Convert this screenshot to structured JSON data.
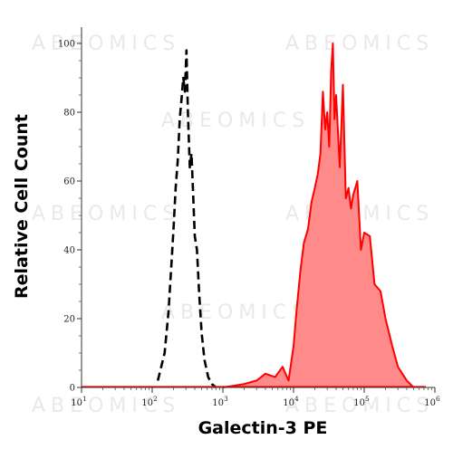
{
  "watermark": "ABEOMICS",
  "chart_data": {
    "type": "area",
    "xlabel": "Galectin-3 PE",
    "ylabel": "Relative Cell Count",
    "x_scale": "log",
    "xlim": [
      10,
      1000000
    ],
    "ylim": [
      0,
      100
    ],
    "x_ticks": [
      10,
      100,
      1000,
      10000,
      100000,
      1000000
    ],
    "x_tick_labels": [
      {
        "base": "10",
        "exp": "1"
      },
      {
        "base": "10",
        "exp": "2"
      },
      {
        "base": "10",
        "exp": "3"
      },
      {
        "base": "10",
        "exp": "4"
      },
      {
        "base": "10",
        "exp": "5"
      },
      {
        "base": "10",
        "exp": "6"
      }
    ],
    "y_ticks": [
      0,
      20,
      40,
      60,
      80,
      100
    ],
    "y_tick_labels": [
      "0",
      "20",
      "40",
      "60",
      "80",
      "100"
    ],
    "grid": false,
    "legend": false,
    "series": [
      {
        "style": "dashed-outline",
        "color": "#000000",
        "x": [
          120,
          150,
          170,
          190,
          200,
          215,
          230,
          245,
          260,
          275,
          290,
          305,
          320,
          340,
          360,
          380,
          400,
          430,
          460,
          500,
          550,
          620,
          700,
          800
        ],
        "y": [
          2,
          10,
          22,
          38,
          46,
          58,
          66,
          78,
          84,
          90,
          86,
          98,
          80,
          64,
          68,
          56,
          44,
          40,
          28,
          16,
          8,
          3,
          1,
          0
        ]
      },
      {
        "style": "filled",
        "color": "#ff0000",
        "fill": "#ff8a8a",
        "x": [
          1000,
          2000,
          3000,
          4000,
          5500,
          7000,
          8500,
          10000,
          11000,
          12500,
          14000,
          16000,
          18000,
          20000,
          22000,
          24000,
          26000,
          28000,
          30000,
          32000,
          34000,
          36000,
          38000,
          40000,
          45000,
          50000,
          55000,
          60000,
          65000,
          70000,
          80000,
          90000,
          100000,
          120000,
          140000,
          170000,
          200000,
          250000,
          300000,
          400000,
          500000
        ],
        "y": [
          0,
          1,
          2,
          4,
          3,
          6,
          2,
          12,
          22,
          34,
          42,
          46,
          54,
          58,
          62,
          68,
          86,
          75,
          80,
          70,
          92,
          100,
          78,
          85,
          64,
          88,
          55,
          58,
          52,
          56,
          60,
          40,
          45,
          44,
          30,
          28,
          20,
          12,
          6,
          2,
          0
        ]
      }
    ]
  }
}
